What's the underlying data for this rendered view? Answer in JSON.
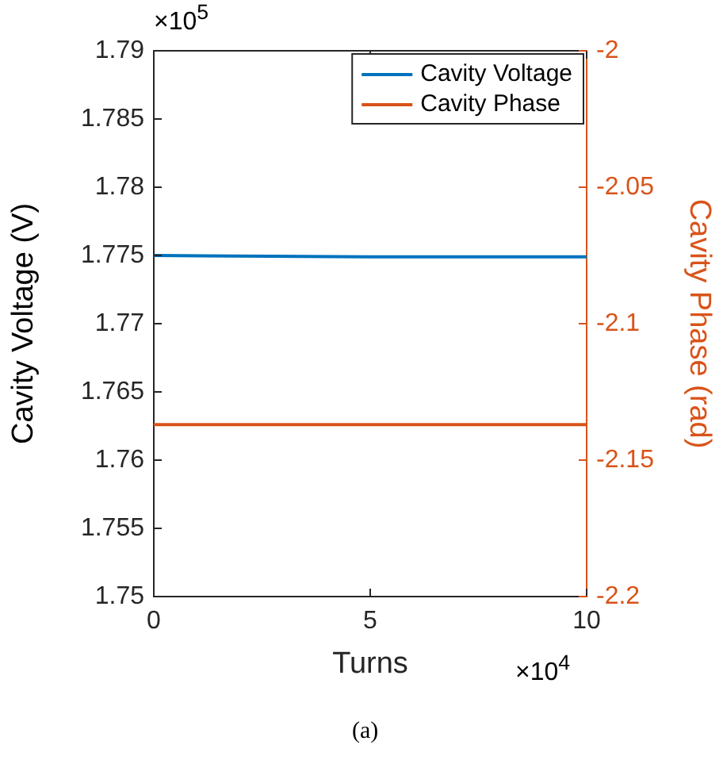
{
  "chart_data": {
    "type": "line",
    "xlabel": "Turns",
    "ylabel": "Cavity Voltage (V)",
    "y2label": "Cavity Phase (rad)",
    "x": [
      0,
      5,
      10
    ],
    "xlim": [
      0,
      10
    ],
    "xticks": [
      0,
      5,
      10
    ],
    "ylim": [
      1.75,
      1.79
    ],
    "yticks": [
      1.75,
      1.755,
      1.76,
      1.765,
      1.77,
      1.775,
      1.78,
      1.785,
      1.79
    ],
    "y2lim": [
      -2.2,
      -2
    ],
    "y2ticks": [
      -2.2,
      -2.15,
      -2.1,
      -2.05,
      -2
    ],
    "series": [
      {
        "name": "Cavity Voltage",
        "color": "#0072bd",
        "values": [
          1.775,
          1.7749,
          1.7749
        ]
      },
      {
        "name": "Cavity Phase",
        "color": "#d95319",
        "axis": "y2",
        "values": [
          -2.137,
          -2.137,
          -2.137
        ]
      }
    ],
    "legend": "top right",
    "grid": false,
    "marker": "none",
    "line_style": "solid",
    "annotations": [
      "×10$^{5}$",
      "×10$^{4}$",
      "(a)"
    ]
  }
}
